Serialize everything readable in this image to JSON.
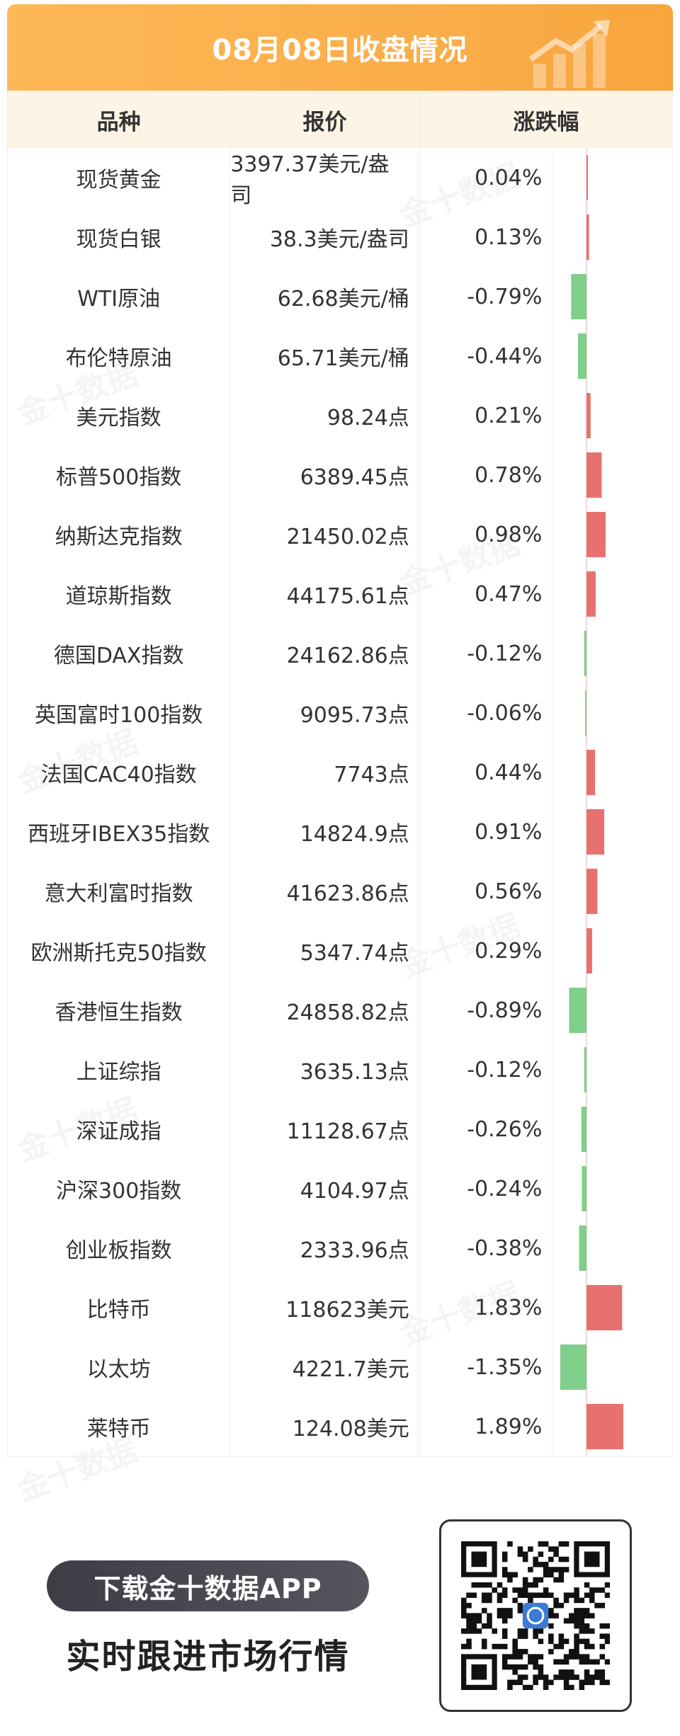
{
  "header": {
    "title": "08月08日收盘情况",
    "columns": [
      "品种",
      "报价",
      "涨跌幅"
    ]
  },
  "colors": {
    "up": "#e8716f",
    "down": "#7fce89",
    "accent": "#fbb04c",
    "header_bg": "#fdf4e6"
  },
  "rows": [
    {
      "name": "现货黄金",
      "price": "3397.37美元/盎司",
      "change_text": "0.04%",
      "change": 0.04
    },
    {
      "name": "现货白银",
      "price": "38.3美元/盎司",
      "change_text": "0.13%",
      "change": 0.13
    },
    {
      "name": "WTI原油",
      "price": "62.68美元/桶",
      "change_text": "-0.79%",
      "change": -0.79
    },
    {
      "name": "布伦特原油",
      "price": "65.71美元/桶",
      "change_text": "-0.44%",
      "change": -0.44
    },
    {
      "name": "美元指数",
      "price": "98.24点",
      "change_text": "0.21%",
      "change": 0.21
    },
    {
      "name": "标普500指数",
      "price": "6389.45点",
      "change_text": "0.78%",
      "change": 0.78
    },
    {
      "name": "纳斯达克指数",
      "price": "21450.02点",
      "change_text": "0.98%",
      "change": 0.98
    },
    {
      "name": "道琼斯指数",
      "price": "44175.61点",
      "change_text": "0.47%",
      "change": 0.47
    },
    {
      "name": "德国DAX指数",
      "price": "24162.86点",
      "change_text": "-0.12%",
      "change": -0.12
    },
    {
      "name": "英国富时100指数",
      "price": "9095.73点",
      "change_text": "-0.06%",
      "change": -0.06
    },
    {
      "name": "法国CAC40指数",
      "price": "7743点",
      "change_text": "0.44%",
      "change": 0.44
    },
    {
      "name": "西班牙IBEX35指数",
      "price": "14824.9点",
      "change_text": "0.91%",
      "change": 0.91
    },
    {
      "name": "意大利富时指数",
      "price": "41623.86点",
      "change_text": "0.56%",
      "change": 0.56
    },
    {
      "name": "欧洲斯托克50指数",
      "price": "5347.74点",
      "change_text": "0.29%",
      "change": 0.29
    },
    {
      "name": "香港恒生指数",
      "price": "24858.82点",
      "change_text": "-0.89%",
      "change": -0.89
    },
    {
      "name": "上证综指",
      "price": "3635.13点",
      "change_text": "-0.12%",
      "change": -0.12
    },
    {
      "name": "深证成指",
      "price": "11128.67点",
      "change_text": "-0.26%",
      "change": -0.26
    },
    {
      "name": "沪深300指数",
      "price": "4104.97点",
      "change_text": "-0.24%",
      "change": -0.24
    },
    {
      "name": "创业板指数",
      "price": "2333.96点",
      "change_text": "-0.38%",
      "change": -0.38
    },
    {
      "name": "比特币",
      "price": "118623美元",
      "change_text": "1.83%",
      "change": 1.83
    },
    {
      "name": "以太坊",
      "price": "4221.7美元",
      "change_text": "-1.35%",
      "change": -1.35
    },
    {
      "name": "莱特币",
      "price": "124.08美元",
      "change_text": "1.89%",
      "change": 1.89
    }
  ],
  "promo": {
    "button_label": "下载金十数据APP",
    "slogan": "实时跟进市场行情",
    "qr_icon": "qr-code-icon"
  }
}
